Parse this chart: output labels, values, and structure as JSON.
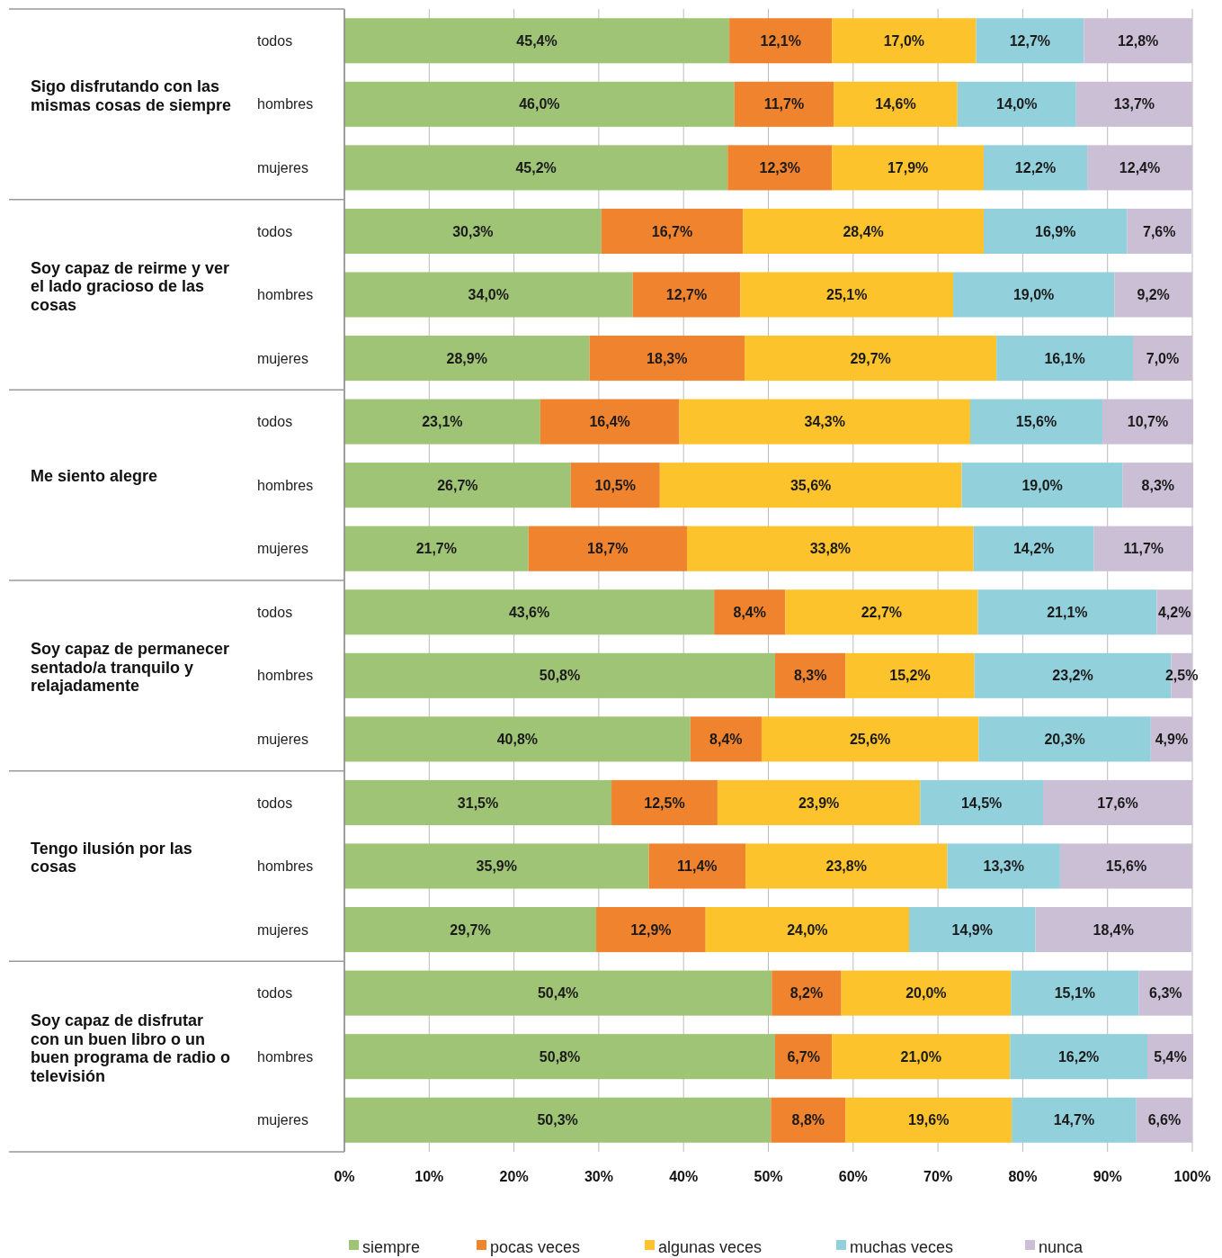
{
  "chart_data": {
    "type": "bar",
    "orientation": "horizontal",
    "stacked": true,
    "grid": "x",
    "legend": "bottom",
    "categories": [
      "todos",
      "hombres",
      "mujeres",
      "todos",
      "hombres",
      "mujeres",
      "todos",
      "hombres",
      "mujeres",
      "todos",
      "hombres",
      "mujeres",
      "todos",
      "hombres",
      "mujeres",
      "todos",
      "hombres",
      "mujeres"
    ],
    "annotations": [
      "Sigo disfrutando con las mismas cosas de siempre",
      "Soy capaz de reirme y ver el lado gracioso de las cosas",
      "Me siento alegre",
      "Soy capaz de permanecer sentado/a tranquilo y relajadamente",
      "Tengo ilusión por las cosas",
      "Soy capaz de disfrutar con un buen libro o un buen programa de radio o televisión"
    ],
    "xlim": [
      0,
      100
    ],
    "xticks": [
      {
        "value": 0,
        "label": "0%"
      },
      {
        "value": 10,
        "label": "10%"
      },
      {
        "value": 20,
        "label": "20%"
      },
      {
        "value": 30,
        "label": "30%"
      },
      {
        "value": 40,
        "label": "40%"
      },
      {
        "value": 50,
        "label": "50%"
      },
      {
        "value": 60,
        "label": "60%"
      },
      {
        "value": 70,
        "label": "70%"
      },
      {
        "value": 80,
        "label": "80%"
      },
      {
        "value": 90,
        "label": "90%"
      },
      {
        "value": 100,
        "label": "100%"
      }
    ],
    "series": [
      {
        "name": "siempre",
        "color": "#9fc475",
        "values": [
          45.4,
          46.0,
          45.2,
          30.3,
          34.0,
          28.9,
          23.1,
          26.7,
          21.7,
          43.6,
          50.8,
          40.8,
          31.5,
          35.9,
          29.7,
          50.4,
          50.8,
          50.3
        ],
        "value_labels": [
          "45,4%",
          "46,0%",
          "45,2%",
          "30,3%",
          "34,0%",
          "28,9%",
          "23,1%",
          "26,7%",
          "21,7%",
          "43,6%",
          "50,8%",
          "40,8%",
          "31,5%",
          "35,9%",
          "29,7%",
          "50,4%",
          "50,8%",
          "50,3%"
        ]
      },
      {
        "name": "pocas veces",
        "color": "#f0832d",
        "values": [
          12.1,
          11.7,
          12.3,
          16.7,
          12.7,
          18.3,
          16.4,
          10.5,
          18.7,
          8.4,
          8.3,
          8.4,
          12.5,
          11.4,
          12.9,
          8.2,
          6.7,
          8.8
        ],
        "value_labels": [
          "12,1%",
          "11,7%",
          "12,3%",
          "16,7%",
          "12,7%",
          "18,3%",
          "16,4%",
          "10,5%",
          "18,7%",
          "8,4%",
          "8,3%",
          "8,4%",
          "12,5%",
          "11,4%",
          "12,9%",
          "8,2%",
          "6,7%",
          "8,8%"
        ]
      },
      {
        "name": "algunas veces",
        "color": "#fcc32c",
        "values": [
          17.0,
          14.6,
          17.9,
          28.4,
          25.1,
          29.7,
          34.3,
          35.6,
          33.8,
          22.7,
          15.2,
          25.6,
          23.9,
          23.8,
          24.0,
          20.0,
          21.0,
          19.6
        ],
        "value_labels": [
          "17,0%",
          "14,6%",
          "17,9%",
          "28,4%",
          "25,1%",
          "29,7%",
          "34,3%",
          "35,6%",
          "33,8%",
          "22,7%",
          "15,2%",
          "25,6%",
          "23,9%",
          "23,8%",
          "24,0%",
          "20,0%",
          "21,0%",
          "19,6%"
        ]
      },
      {
        "name": "muchas veces",
        "color": "#92d0dc",
        "values": [
          12.7,
          14.0,
          12.2,
          16.9,
          19.0,
          16.1,
          15.6,
          19.0,
          14.2,
          21.1,
          23.2,
          20.3,
          14.5,
          13.3,
          14.9,
          15.1,
          16.2,
          14.7
        ],
        "value_labels": [
          "12,7%",
          "14,0%",
          "12,2%",
          "16,9%",
          "19,0%",
          "16,1%",
          "15,6%",
          "19,0%",
          "14,2%",
          "21,1%",
          "23,2%",
          "20,3%",
          "14,5%",
          "13,3%",
          "14,9%",
          "15,1%",
          "16,2%",
          "14,7%"
        ]
      },
      {
        "name": "nunca",
        "color": "#cbbfd6",
        "values": [
          12.8,
          13.7,
          12.4,
          7.6,
          9.2,
          7.0,
          10.7,
          8.3,
          11.7,
          4.2,
          2.5,
          4.9,
          17.6,
          15.6,
          18.4,
          6.3,
          5.4,
          6.6
        ],
        "value_labels": [
          "12,8%",
          "13,7%",
          "12,4%",
          "7,6%",
          "9,2%",
          "7,0%",
          "10,7%",
          "8,3%",
          "11,7%",
          "4,2%",
          "2,5%",
          "4,9%",
          "17,6%",
          "15,6%",
          "18,4%",
          "6,3%",
          "5,4%",
          "6,6%"
        ]
      }
    ]
  }
}
